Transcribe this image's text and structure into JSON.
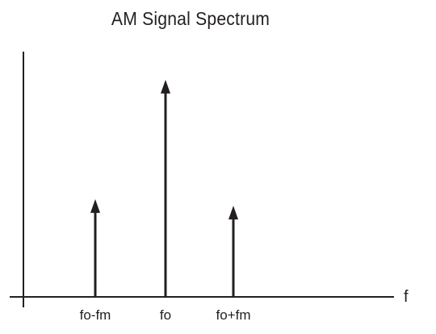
{
  "title": "AM Signal Spectrum",
  "axis": {
    "x_label": "f"
  },
  "chart_data": {
    "type": "bar",
    "categories": [
      "fo-fm",
      "fo",
      "fo+fm"
    ],
    "series": [
      {
        "values": [
          0.45,
          1.0,
          0.42
        ]
      }
    ],
    "ylim": [
      0,
      1.1
    ],
    "grid": false
  },
  "colors": {
    "ink": "#231f20",
    "background": "#ffffff"
  }
}
